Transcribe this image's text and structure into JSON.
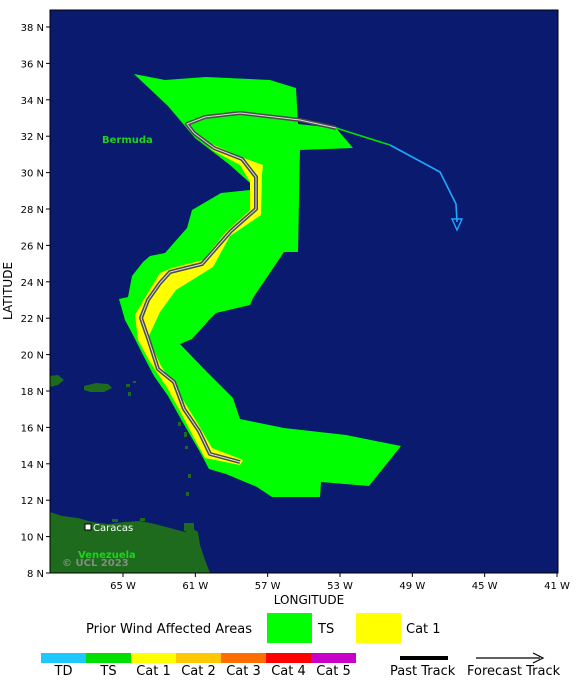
{
  "axes": {
    "x_title": "LONGITUDE",
    "y_title": "LATITUDE",
    "x_ticks": [
      "65 W",
      "61 W",
      "57 W",
      "53 W",
      "49 W",
      "45 W",
      "41 W"
    ],
    "y_ticks": [
      "38 N",
      "36 N",
      "34 N",
      "32 N",
      "30 N",
      "28 N",
      "26 N",
      "24 N",
      "22 N",
      "20 N",
      "18 N",
      "16 N",
      "14 N",
      "12 N",
      "10 N",
      "8 N"
    ]
  },
  "map": {
    "labels": {
      "bermuda": "Bermuda",
      "caracas": "Caracas",
      "venezuela": "Venezuela",
      "watermark": "© UCL 2023"
    },
    "colors": {
      "ocean": "#0a1a6e",
      "land": "#1e6b1e",
      "ts_area": "#00ff00",
      "cat1_area": "#ffff00",
      "past_track": "#000000",
      "forecast_ts": "#00e000",
      "forecast_td": "#1ea8ff"
    }
  },
  "legend": {
    "areas_title": "Prior Wind Affected Areas",
    "areas": [
      {
        "label": "TS",
        "color": "#00ff00"
      },
      {
        "label": "Cat 1",
        "color": "#ffff00"
      }
    ],
    "scale": [
      {
        "label": "TD",
        "color": "#1ec8ff"
      },
      {
        "label": "TS",
        "color": "#00e000"
      },
      {
        "label": "Cat 1",
        "color": "#ffff00"
      },
      {
        "label": "Cat 2",
        "color": "#ffc800"
      },
      {
        "label": "Cat 3",
        "color": "#ff6e00"
      },
      {
        "label": "Cat 4",
        "color": "#ff0000"
      },
      {
        "label": "Cat 5",
        "color": "#c800c8"
      }
    ],
    "past_track_label": "Past Track",
    "forecast_track_label": "Forecast Track"
  }
}
